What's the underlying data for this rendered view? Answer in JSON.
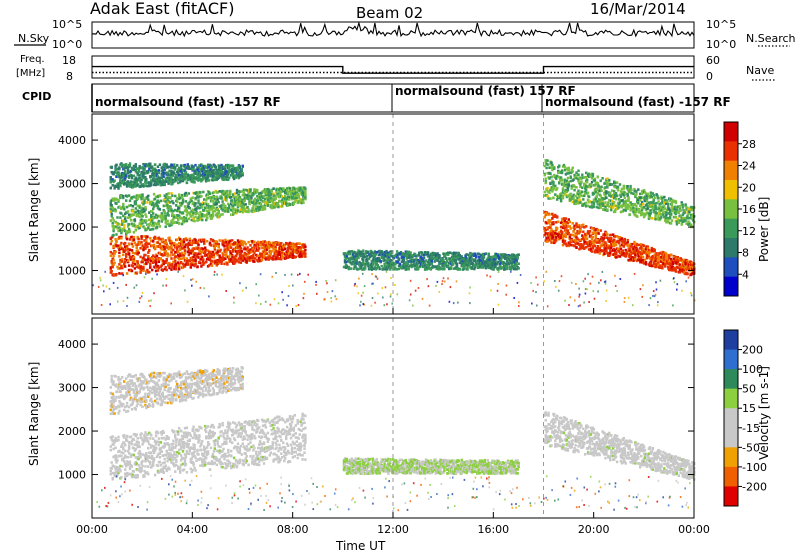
{
  "header": {
    "station": "Adak East (fitACF)",
    "beam": "Beam 02",
    "date": "16/Mar/2014"
  },
  "labels": {
    "nsky": "N.Sky",
    "nsearch": "N.Search",
    "freq_line1": "Freq.",
    "freq_line2": "[MHz]",
    "nave": "Nave",
    "cpid": "CPID"
  },
  "cpid_segments": [
    {
      "text": "normalsound (fast) -157 RF"
    },
    {
      "text": "normalsound (fast) 157 RF"
    },
    {
      "text": "normalsound (fast) -157 RF"
    }
  ],
  "colors": {
    "power_scale": [
      "#0000cc",
      "#1f4fbf",
      "#2e7a6a",
      "#3a9a5a",
      "#78c040",
      "#f0c000",
      "#f08000",
      "#e83000",
      "#d00000"
    ],
    "velocity_scale": [
      "#1f3fa0",
      "#2f6fd0",
      "#2e8a5a",
      "#8cd040",
      "#c8c8c8",
      "#c8c8c8",
      "#f0a000",
      "#f06000",
      "#e00000"
    ]
  },
  "chart_data": [
    {
      "type": "line",
      "name": "sky-noise",
      "title": "",
      "xlabel": "",
      "x_range_hours": [
        0,
        24
      ],
      "y_ticks_left": [
        "10^5",
        "10^0"
      ],
      "y_ticks_right": [
        "10^5",
        "10^0"
      ],
      "series": [
        {
          "name": "N.Sky",
          "style": "solid",
          "description": "sky noise, roughly 10^2-10^3 with spikes"
        },
        {
          "name": "N.Search",
          "style": "dotted"
        }
      ]
    },
    {
      "type": "line",
      "name": "frequency-nave",
      "y_ticks_left": [
        "18",
        "8"
      ],
      "y_ticks_right": [
        "60",
        "0"
      ],
      "series": [
        {
          "name": "Freq.",
          "unit": "MHz",
          "style": "solid",
          "x": [
            0,
            10,
            10,
            18,
            18,
            24
          ],
          "y": [
            13.2,
            13.2,
            10.2,
            10.2,
            13.2,
            13.2
          ]
        },
        {
          "name": "Nave",
          "style": "dotted",
          "x": [
            0,
            24
          ],
          "y": [
            15,
            15
          ]
        }
      ]
    },
    {
      "type": "heatmap",
      "name": "power",
      "ylabel": "Slant Range [km]",
      "ylim": [
        0,
        4600
      ],
      "y_ticks": [
        1000,
        2000,
        3000,
        4000
      ],
      "colorbar": {
        "label": "Power [dB]",
        "ticks": [
          4,
          8,
          12,
          16,
          20,
          24,
          28
        ],
        "range": [
          0,
          32
        ]
      },
      "x_range_hours": [
        0,
        24
      ],
      "bands": [
        {
          "x": [
            0.7,
            8.5
          ],
          "range_start_km": [
            900,
            1350
          ],
          "range_end_km": [
            950,
            300
          ],
          "value_db": 26
        },
        {
          "x": [
            0.7,
            8.5
          ],
          "range_start_km": [
            1800,
            2600
          ],
          "range_end_km": [
            950,
            350
          ],
          "value_db": 14
        },
        {
          "x": [
            0.7,
            6.0
          ],
          "range_start_km": [
            2900,
            3150
          ],
          "range_end_km": [
            600,
            300
          ],
          "value_db": 10
        },
        {
          "x": [
            10.0,
            17.0
          ],
          "range_start_km": [
            1050,
            1050
          ],
          "range_end_km": [
            450,
            350
          ],
          "value_db": 10
        },
        {
          "x": [
            18.0,
            24.0
          ],
          "range_start_km": [
            1700,
            900
          ],
          "range_end_km": [
            700,
            300
          ],
          "value_db": 26
        },
        {
          "x": [
            18.0,
            24.0
          ],
          "range_start_km": [
            2700,
            2000
          ],
          "range_end_km": [
            900,
            500
          ],
          "value_db": 14
        }
      ]
    },
    {
      "type": "heatmap",
      "name": "velocity",
      "ylabel": "Slant Range [km]",
      "xlabel": "Time UT",
      "ylim": [
        0,
        4600
      ],
      "y_ticks": [
        1000,
        2000,
        3000,
        4000
      ],
      "x_ticks": [
        "00:00",
        "04:00",
        "08:00",
        "12:00",
        "16:00",
        "20:00",
        "00:00"
      ],
      "colorbar": {
        "label": "Velocity [m s-1]",
        "ticks": [
          200,
          100,
          50,
          15,
          -15,
          -50,
          -100,
          -200
        ]
      },
      "x_range_hours": [
        0,
        24
      ],
      "bands": [
        {
          "x": [
            0.7,
            8.5
          ],
          "range_start_km": [
            900,
            1350
          ],
          "range_end_km": [
            1000,
            1100
          ],
          "value_ms": 0
        },
        {
          "x": [
            0.7,
            6.0
          ],
          "range_start_km": [
            2400,
            3000
          ],
          "range_end_km": [
            900,
            500
          ],
          "value_ms": -60
        },
        {
          "x": [
            10.0,
            17.0
          ],
          "range_start_km": [
            1050,
            1050
          ],
          "range_end_km": [
            350,
            300
          ],
          "value_ms": 30
        },
        {
          "x": [
            18.0,
            24.0
          ],
          "range_start_km": [
            1700,
            900
          ],
          "range_end_km": [
            800,
            400
          ],
          "value_ms": 0
        }
      ]
    }
  ]
}
